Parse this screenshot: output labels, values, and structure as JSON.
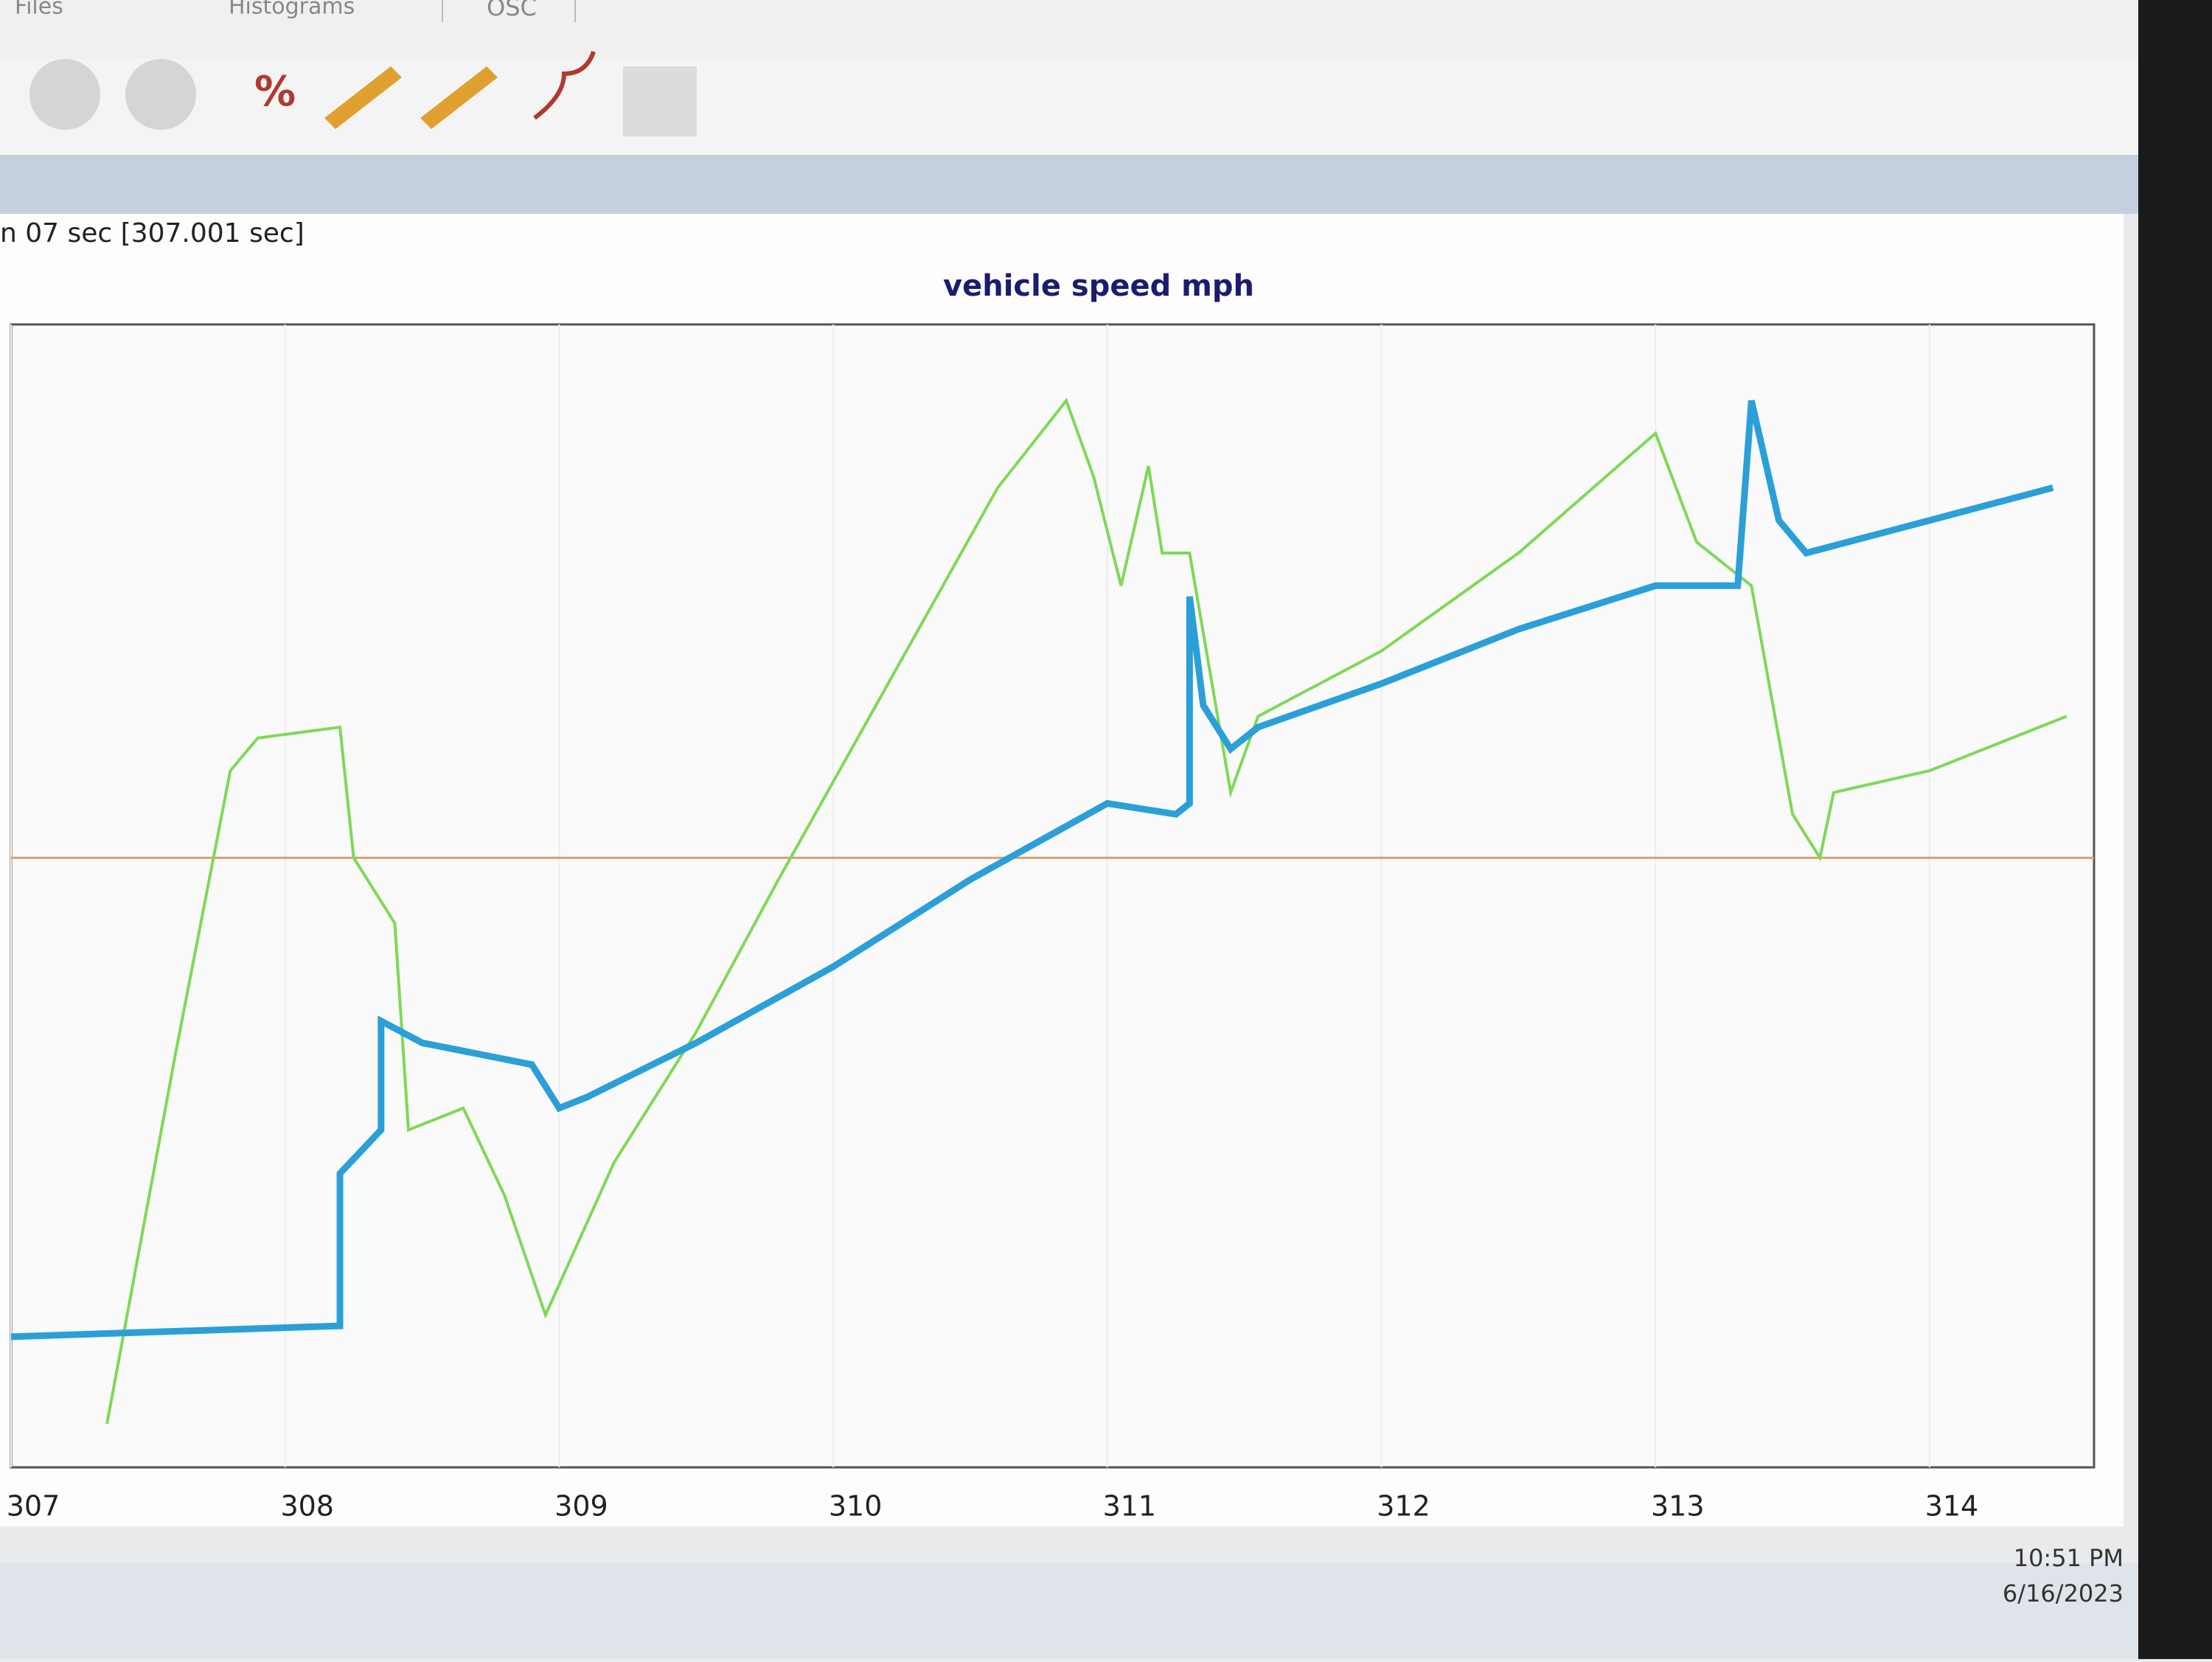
{
  "tabs": [
    "Files",
    "Histograms",
    "OSC"
  ],
  "status_text": "n 07 sec [307.001 sec]",
  "toolbar": {
    "percent_button": "%"
  },
  "chart_data": {
    "type": "line",
    "title": "vehicle speed mph",
    "xlim": [
      307,
      314.6
    ],
    "xticks": [
      307,
      308,
      309,
      310,
      311,
      312,
      313,
      314
    ],
    "ylim": [
      -5,
      100
    ],
    "grid": true,
    "reference_line": 51,
    "series": [
      {
        "color": "#7ed957",
        "x": [
          307.35,
          307.6,
          307.8,
          307.9,
          308.2,
          308.25,
          308.4,
          308.45,
          308.65,
          308.8,
          308.95,
          309.2,
          309.5,
          309.8,
          310.2,
          310.6,
          310.85,
          310.95,
          311.05,
          311.15,
          311.2,
          311.3,
          311.45,
          311.55,
          312,
          312.5,
          313,
          313.15,
          313.35,
          313.5,
          313.6,
          313.65,
          314,
          314.5
        ],
        "values": [
          -1,
          33,
          59,
          62,
          63,
          51,
          45,
          26,
          28,
          20,
          9,
          23,
          35,
          49,
          67,
          85,
          93,
          86,
          76,
          87,
          79,
          79,
          57,
          64,
          70,
          79,
          90,
          80,
          76,
          55,
          51,
          57,
          59,
          64
        ]
      },
      {
        "color": "#2b9fd8",
        "x": [
          307,
          308.2,
          308.2,
          308.35,
          308.35,
          308.5,
          308.9,
          309,
          309.1,
          309.5,
          310,
          310.5,
          311,
          311.25,
          311.3,
          311.3,
          311.35,
          311.45,
          311.55,
          312,
          312.5,
          313,
          313.3,
          313.35,
          313.45,
          313.55,
          314,
          314.45
        ],
        "values": [
          7,
          8,
          22,
          26,
          36,
          34,
          32,
          28,
          29,
          34,
          41,
          49,
          56,
          55,
          56,
          75,
          65,
          61,
          63,
          67,
          72,
          76,
          76,
          93,
          82,
          79,
          82,
          85
        ]
      }
    ]
  },
  "taskbar": {
    "time": "10:51 PM",
    "date": "6/16/2023"
  }
}
